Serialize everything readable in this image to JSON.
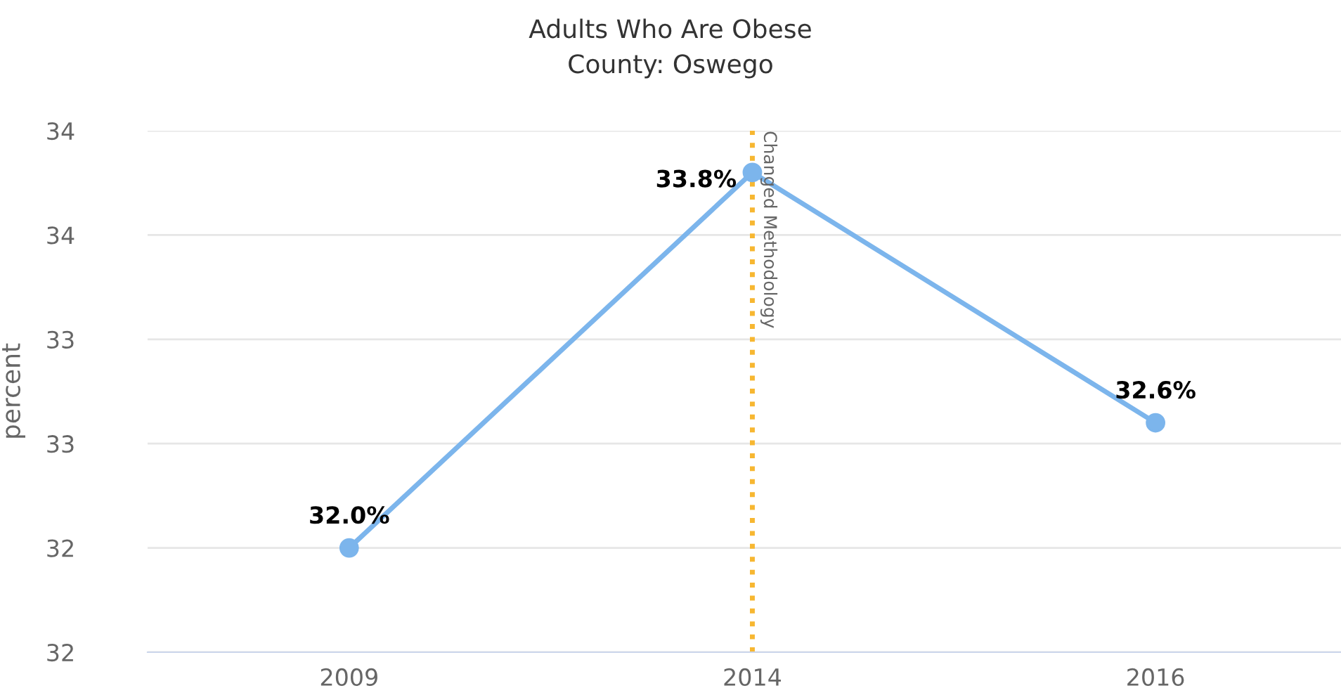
{
  "chart_data": {
    "type": "line",
    "title": "Adults Who Are Obese",
    "subtitle": "County: Oswego",
    "ylabel": "percent",
    "categories": [
      "2009",
      "2014",
      "2016"
    ],
    "series": [
      {
        "color": "#7cb5ec",
        "values": [
          32.0,
          33.8,
          32.6
        ],
        "value_labels": [
          "32.0%",
          "33.8%",
          "32.6%"
        ]
      }
    ],
    "ylim": [
      31.5,
      34.0
    ],
    "yticks": [
      {
        "value": 31.5,
        "label": "32"
      },
      {
        "value": 32.0,
        "label": "32"
      },
      {
        "value": 32.5,
        "label": "33"
      },
      {
        "value": 33.0,
        "label": "33"
      },
      {
        "value": 33.5,
        "label": "34"
      },
      {
        "value": 34.0,
        "label": "34"
      }
    ],
    "grid": "y",
    "marker": "circle",
    "line_style": "solid",
    "legend": false,
    "ref_lines": [
      {
        "axis": "x",
        "value": "2014",
        "label": "Changed Methodology",
        "color": "#f7b731",
        "line_style": "dotted"
      }
    ]
  }
}
